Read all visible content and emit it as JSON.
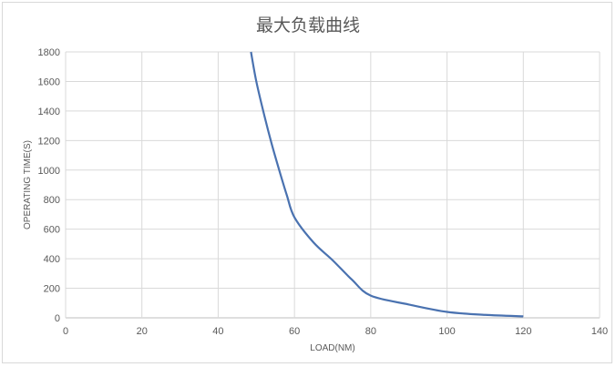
{
  "chart_data": {
    "type": "line",
    "title": "最大负载曲线",
    "xlabel": "LOAD(NM)",
    "ylabel": "OPERATING TIME(S)",
    "xlim": [
      0,
      140
    ],
    "ylim": [
      0,
      1800
    ],
    "xticks": [
      0,
      20,
      40,
      60,
      80,
      100,
      120,
      140
    ],
    "yticks": [
      0,
      200,
      400,
      600,
      800,
      1000,
      1200,
      1400,
      1600,
      1800
    ],
    "grid": true,
    "legend": "none",
    "series": [
      {
        "color": "#4a72b0",
        "points": [
          [
            48.6,
            1800
          ],
          [
            50,
            1600
          ],
          [
            52,
            1380
          ],
          [
            54,
            1180
          ],
          [
            56,
            1000
          ],
          [
            58,
            830
          ],
          [
            60,
            680
          ],
          [
            65,
            510
          ],
          [
            70,
            390
          ],
          [
            75,
            260
          ],
          [
            80,
            150
          ],
          [
            90,
            90
          ],
          [
            100,
            40
          ],
          [
            110,
            20
          ],
          [
            120,
            10
          ]
        ]
      }
    ]
  }
}
